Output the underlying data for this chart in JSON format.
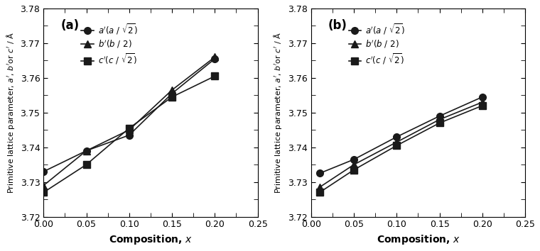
{
  "panel_a": {
    "label": "(a)",
    "x": [
      0.0,
      0.05,
      0.1,
      0.15,
      0.2
    ],
    "a_prime": [
      3.733,
      3.739,
      3.7435,
      3.7555,
      3.7655
    ],
    "b_prime": [
      3.729,
      3.739,
      3.745,
      3.7565,
      3.766
    ],
    "c_prime": [
      3.727,
      3.735,
      3.7455,
      3.7545,
      3.7605
    ]
  },
  "panel_b": {
    "label": "(b)",
    "x": [
      0.01,
      0.05,
      0.1,
      0.15,
      0.2
    ],
    "a_prime": [
      3.7325,
      3.7365,
      3.743,
      3.749,
      3.7545
    ],
    "b_prime": [
      3.7285,
      3.735,
      3.7415,
      3.748,
      3.753
    ],
    "c_prime": [
      3.727,
      3.7335,
      3.7405,
      3.747,
      3.752
    ]
  },
  "ylabel": "Primitive lattice parameter, $a'$, $b'$or $c'$ / Å",
  "xlabel": "Composition, $x$",
  "legend_a_label": "$a'$($a$ / $\\sqrt{2}$)",
  "legend_b_label": "$b'$($b$ / 2)",
  "legend_c_label": "$c'$($c$ / $\\sqrt{2}$)",
  "ylim": [
    3.72,
    3.78
  ],
  "xlim": [
    0.0,
    0.25
  ],
  "color": "#1a1a1a",
  "marker_circle": "o",
  "marker_triangle": "^",
  "marker_square": "s",
  "markersize": 7,
  "linewidth": 1.2,
  "yticks": [
    3.72,
    3.73,
    3.74,
    3.75,
    3.76,
    3.77,
    3.78
  ],
  "xticks": [
    0.0,
    0.05,
    0.1,
    0.15,
    0.2,
    0.25
  ]
}
